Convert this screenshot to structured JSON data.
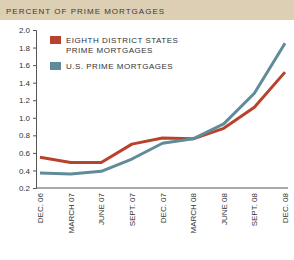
{
  "chart_data": {
    "type": "line",
    "title": "PERCENT OF PRIME MORTGAGES",
    "categories": [
      "DEC. 06",
      "MARCH 07",
      "JUNE 07",
      "SEPT. 07",
      "DEC. 07",
      "MARCH 08",
      "JUNE 08",
      "SEPT. 08",
      "DEC. 08"
    ],
    "series": [
      {
        "name": "EIGHTH DISTRICT STATES PRIME MORTGAGES",
        "color": "#b8432d",
        "values": [
          0.55,
          0.49,
          0.49,
          0.7,
          0.77,
          0.76,
          0.88,
          1.12,
          1.52
        ]
      },
      {
        "name": "U.S. PRIME MORTGAGES",
        "color": "#5f8c98",
        "values": [
          0.37,
          0.36,
          0.39,
          0.53,
          0.71,
          0.76,
          0.93,
          1.28,
          1.85
        ]
      }
    ],
    "ylim": [
      0.2,
      2.0
    ],
    "yticks": [
      0.2,
      0.4,
      0.6,
      0.8,
      {
        "value": 1,
        "label": "1.0"
      },
      1.2,
      1.4,
      1.6,
      1.8,
      {
        "value": 2,
        "label": "2.0"
      }
    ],
    "grid": false,
    "legend": "upper left"
  }
}
